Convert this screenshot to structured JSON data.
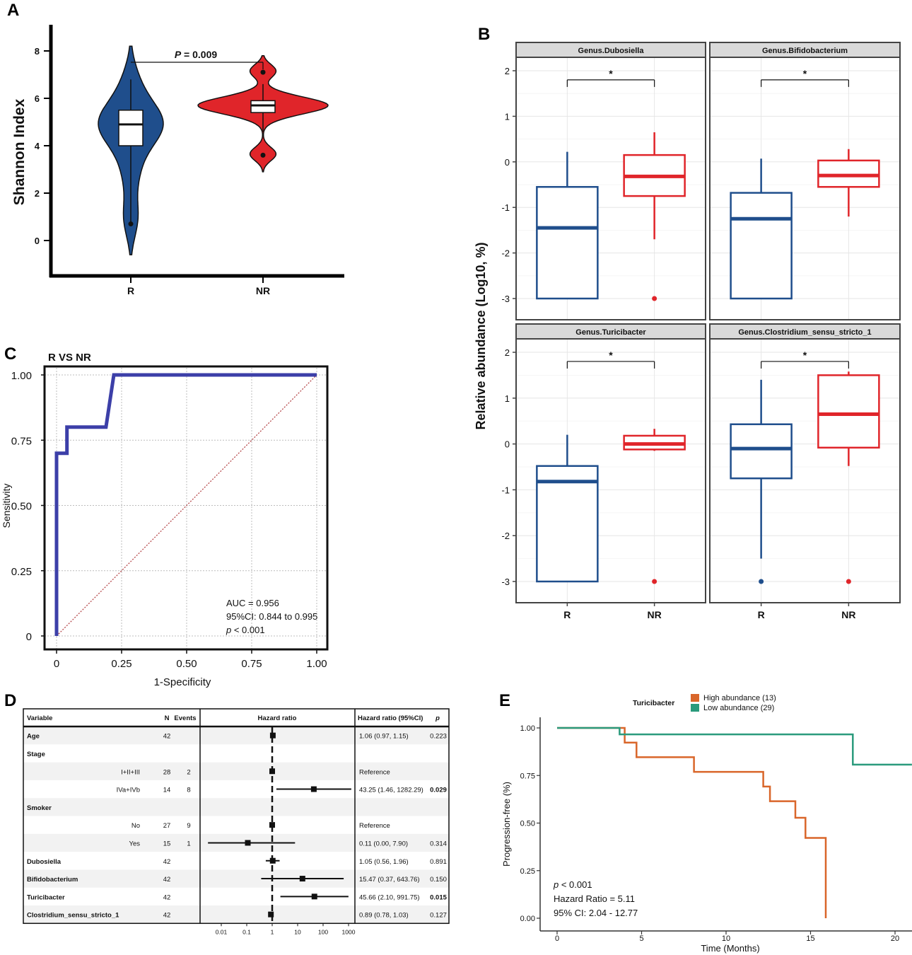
{
  "colors": {
    "blue": "#1F4E8C",
    "red": "#E0252A",
    "roc": "#3C3FA8",
    "diag": "#B5484A",
    "orange": "#D9662A",
    "green": "#2A9A7C",
    "strip": "#D9D9D9",
    "grid": "#E6E6E6",
    "rowShade": "#F2F2F2"
  },
  "chart_data": [
    {
      "panel": "A",
      "type": "violin",
      "ylabel": "Shannon Index",
      "ylim": [
        -1,
        9
      ],
      "yticks": [
        "0",
        "2",
        "4",
        "6",
        "8"
      ],
      "categories": [
        "R",
        "NR"
      ],
      "annotation": "P = 0.009",
      "annotation_p": "P",
      "annotation_rest": " = 0.009",
      "groups": [
        {
          "name": "R",
          "min": 0.7,
          "q1": 4.0,
          "median": 4.9,
          "q3": 5.5,
          "max": 6.8,
          "outliers": [
            0.7
          ]
        },
        {
          "name": "NR",
          "min": 4.6,
          "q1": 5.4,
          "median": 5.7,
          "q3": 5.9,
          "max": 6.6,
          "outliers": [
            3.6,
            7.1
          ]
        }
      ]
    },
    {
      "panel": "B",
      "type": "boxplot",
      "ylabel": "Relative abundance (Log10, %)",
      "ylim": [
        -3.5,
        2.3
      ],
      "yticks": [
        "2",
        "1",
        "0",
        "-1",
        "-2",
        "-3"
      ],
      "categories": [
        "R",
        "NR"
      ],
      "significance": "*",
      "facets": [
        {
          "title": "Genus.Dubosiella",
          "groups": [
            {
              "name": "R",
              "min": -3,
              "q1": -3,
              "median": -1.45,
              "q3": -0.55,
              "max": 0.22,
              "outliers": []
            },
            {
              "name": "NR",
              "min": -1.7,
              "q1": -0.75,
              "median": -0.32,
              "q3": 0.15,
              "max": 0.65,
              "outliers": [
                -3
              ]
            }
          ]
        },
        {
          "title": "Genus.Bifidobacterium",
          "groups": [
            {
              "name": "R",
              "min": -3,
              "q1": -3,
              "median": -1.25,
              "q3": -0.68,
              "max": 0.07,
              "outliers": []
            },
            {
              "name": "NR",
              "min": -1.2,
              "q1": -0.55,
              "median": -0.3,
              "q3": 0.03,
              "max": 0.28,
              "outliers": []
            }
          ]
        },
        {
          "title": "Genus.Turicibacter",
          "groups": [
            {
              "name": "R",
              "min": -3,
              "q1": -3,
              "median": -0.82,
              "q3": -0.48,
              "max": 0.2,
              "outliers": []
            },
            {
              "name": "NR",
              "min": -0.15,
              "q1": -0.12,
              "median": 0.0,
              "q3": 0.18,
              "max": 0.33,
              "outliers": [
                -3
              ]
            }
          ]
        },
        {
          "title": "Genus.Clostridium_sensu_stricto_1",
          "groups": [
            {
              "name": "R",
              "min": -2.5,
              "q1": -0.75,
              "median": -0.1,
              "q3": 0.43,
              "max": 1.4,
              "outliers": [
                -3
              ]
            },
            {
              "name": "NR",
              "min": -0.48,
              "q1": -0.08,
              "median": 0.65,
              "q3": 1.5,
              "max": 1.58,
              "outliers": [
                -3
              ]
            }
          ]
        }
      ]
    },
    {
      "panel": "C",
      "type": "line",
      "title": "R VS NR",
      "xlabel": "1-Specificity",
      "ylabel": "Sensitivity",
      "xlim": [
        0,
        1
      ],
      "ylim": [
        0,
        1
      ],
      "xticks": [
        "0",
        "0.25",
        "0.50",
        "0.75",
        "1.00"
      ],
      "yticks": [
        "0",
        "0.25",
        "0.50",
        "0.75",
        "1.00"
      ],
      "roc_x": [
        0,
        0,
        0.04,
        0.04,
        0.19,
        0.19,
        0.22,
        0.22,
        1.0
      ],
      "roc_y": [
        0,
        0.7,
        0.7,
        0.8,
        0.8,
        0.8,
        1.0,
        1.0,
        1.0
      ],
      "stats": [
        "AUC = 0.956",
        "95%CI: 0.844 to 0.995"
      ],
      "p_label": "p",
      "p_rest": " < 0.001"
    },
    {
      "panel": "D",
      "type": "forest",
      "headers": {
        "variable": "Variable",
        "n": "N",
        "events": "Events",
        "hr": "Hazard ratio",
        "hrci": "Hazard ratio (95%CI)",
        "p": "p"
      },
      "xticks": [
        "0.01",
        "0.1",
        "1",
        "10",
        "100",
        "1000"
      ],
      "rows": [
        {
          "variable": "Age",
          "bold": true,
          "n": "42",
          "events": "",
          "hr": 1.06,
          "lo": 0.97,
          "hi": 1.15,
          "hrci": "1.06 (0.97, 1.15)",
          "p": "0.223",
          "pbold": false,
          "shade": true
        },
        {
          "variable": "Stage",
          "bold": true,
          "n": "",
          "events": "",
          "hr": null,
          "hrci": "",
          "p": "",
          "pbold": false,
          "shade": false
        },
        {
          "variable": "I+II+III",
          "bold": false,
          "n": "28",
          "events": "2",
          "hr": 1.0,
          "lo": 1.0,
          "hi": 1.0,
          "hrci": "Reference",
          "p": "",
          "pbold": false,
          "shade": true
        },
        {
          "variable": "IVa+IVb",
          "bold": false,
          "n": "14",
          "events": "8",
          "hr": 43.25,
          "lo": 1.46,
          "hi": 1282.29,
          "hrci": "43.25 (1.46, 1282.29)",
          "p": "0.029",
          "pbold": true,
          "shade": false
        },
        {
          "variable": "Smoker",
          "bold": true,
          "n": "",
          "events": "",
          "hr": null,
          "hrci": "",
          "p": "",
          "pbold": false,
          "shade": true
        },
        {
          "variable": "No",
          "bold": false,
          "n": "27",
          "events": "9",
          "hr": 1.0,
          "lo": 1.0,
          "hi": 1.0,
          "hrci": "Reference",
          "p": "",
          "pbold": false,
          "shade": false
        },
        {
          "variable": "Yes",
          "bold": false,
          "n": "15",
          "events": "1",
          "hr": 0.11,
          "lo": 0.0,
          "hi": 7.9,
          "hrci": "0.11 (0.00, 7.90)",
          "p": "0.314",
          "pbold": false,
          "shade": true
        },
        {
          "variable": "Dubosiella",
          "bold": true,
          "n": "42",
          "events": "",
          "hr": 1.05,
          "lo": 0.56,
          "hi": 1.96,
          "hrci": "1.05 (0.56, 1.96)",
          "p": "0.891",
          "pbold": false,
          "shade": false
        },
        {
          "variable": "Bifidobacterium",
          "bold": true,
          "n": "42",
          "events": "",
          "hr": 15.47,
          "lo": 0.37,
          "hi": 643.76,
          "hrci": "15.47 (0.37, 643.76)",
          "p": "0.150",
          "pbold": false,
          "shade": true
        },
        {
          "variable": "Turicibacter",
          "bold": true,
          "n": "42",
          "events": "",
          "hr": 45.66,
          "lo": 2.1,
          "hi": 991.75,
          "hrci": "45.66 (2.10, 991.75)",
          "p": "0.015",
          "pbold": true,
          "shade": false
        },
        {
          "variable": "Clostridium_sensu_stricto_1",
          "bold": true,
          "n": "42",
          "events": "",
          "hr": 0.89,
          "lo": 0.78,
          "hi": 1.03,
          "hrci": "0.89 (0.78, 1.03)",
          "p": "0.127",
          "pbold": false,
          "shade": true
        }
      ]
    },
    {
      "panel": "E",
      "type": "line",
      "xlabel": "Time (Months)",
      "ylabel": "Progression-free (%)",
      "xlim": [
        -1,
        21
      ],
      "ylim": [
        -0.06,
        1.06
      ],
      "xticks": [
        "0",
        "5",
        "10",
        "15",
        "20"
      ],
      "yticks": [
        "0.00",
        "0.25",
        "0.50",
        "0.75",
        "1.00"
      ],
      "legend_title": "Turicibacter",
      "series": [
        {
          "name": "High abundance (13)",
          "color": "orange",
          "x": [
            0,
            4.0,
            4.0,
            4.7,
            4.7,
            8.1,
            8.1,
            12.2,
            12.2,
            12.6,
            12.6,
            14.1,
            14.1,
            14.7,
            14.7,
            15.9,
            15.9
          ],
          "y": [
            1.0,
            1.0,
            0.923,
            0.923,
            0.846,
            0.846,
            0.769,
            0.769,
            0.692,
            0.692,
            0.615,
            0.615,
            0.528,
            0.528,
            0.422,
            0.422,
            0.0
          ]
        },
        {
          "name": "Low abundance (29)",
          "color": "green",
          "x": [
            0,
            3.7,
            3.7,
            17.5,
            17.5,
            21
          ],
          "y": [
            1.0,
            1.0,
            0.966,
            0.966,
            0.807,
            0.807
          ]
        }
      ],
      "p_label": "p",
      "p_rest": " < 0.001",
      "stats": [
        "Hazard Ratio = 5.11",
        "95% CI: 2.04 - 12.77"
      ]
    }
  ]
}
